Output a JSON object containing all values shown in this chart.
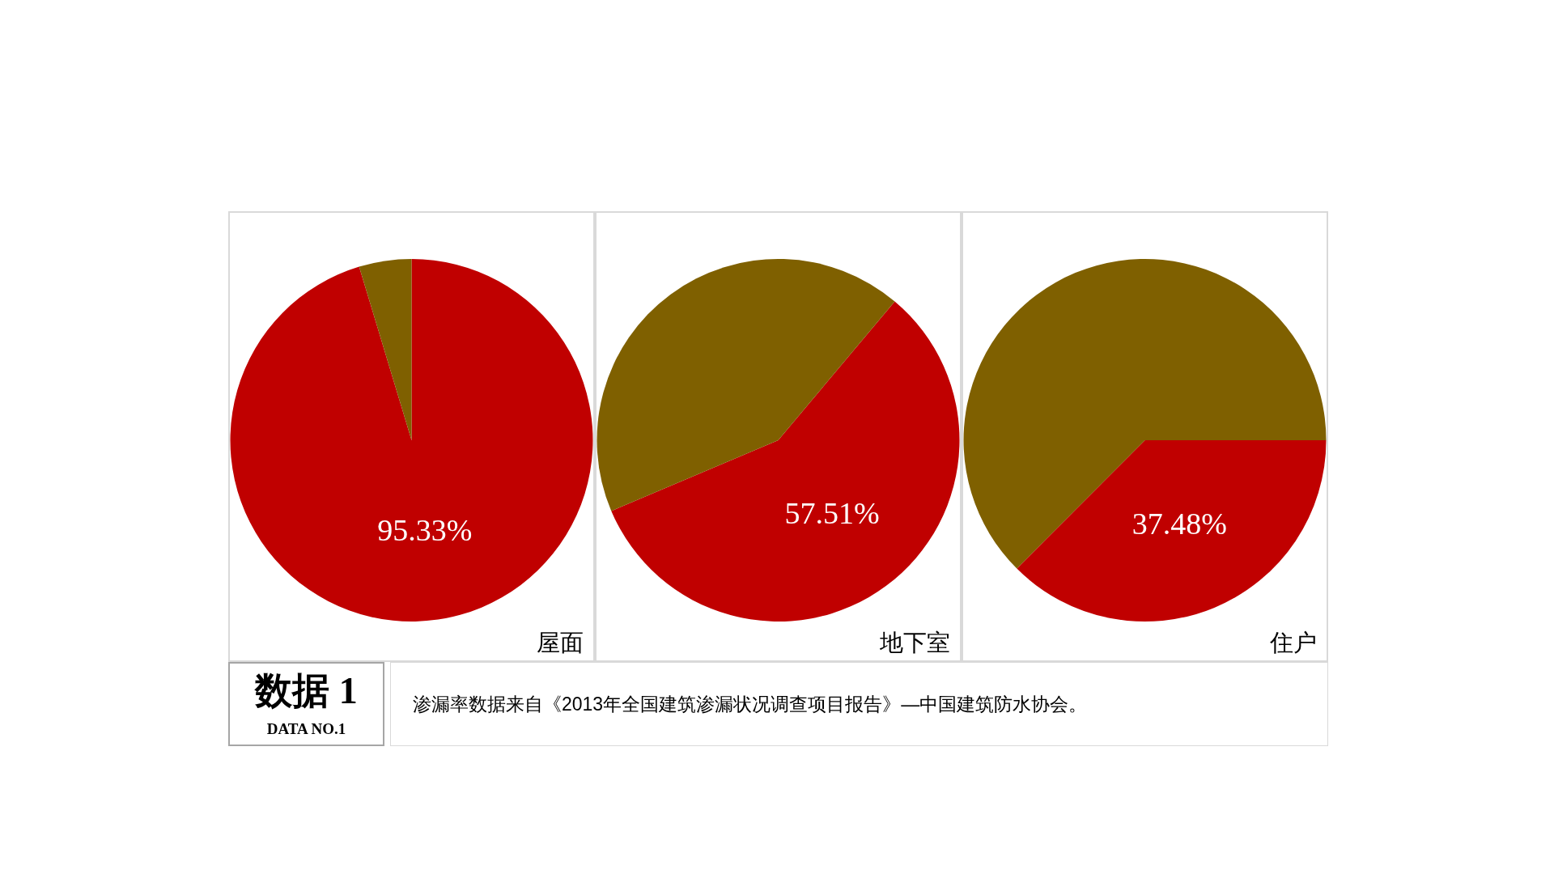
{
  "chart_data": [
    {
      "type": "pie",
      "title": "屋面",
      "categories": [
        null,
        null
      ],
      "values": [
        95.33,
        4.67
      ],
      "colors": [
        "#c00000",
        "#7f6000"
      ],
      "value_labels": [
        "95.33%",
        null
      ]
    },
    {
      "type": "pie",
      "title": "地下室",
      "categories": [
        null,
        null
      ],
      "values": [
        57.51,
        42.49
      ],
      "colors": [
        "#c00000",
        "#7f6000"
      ],
      "value_labels": [
        "57.51%",
        null
      ]
    },
    {
      "type": "pie",
      "title": "住户",
      "categories": [
        null,
        null
      ],
      "values": [
        37.48,
        62.52
      ],
      "colors": [
        "#c00000",
        "#7f6000"
      ],
      "value_labels": [
        "37.48%",
        null
      ]
    },
    {
      "type": "other",
      "annotations": [
        "数据 1",
        "DATA NO.1",
        "渗漏率数据来自《2013年全国建筑渗漏状况调查项目报告》—中国建筑防水协会。"
      ]
    }
  ]
}
